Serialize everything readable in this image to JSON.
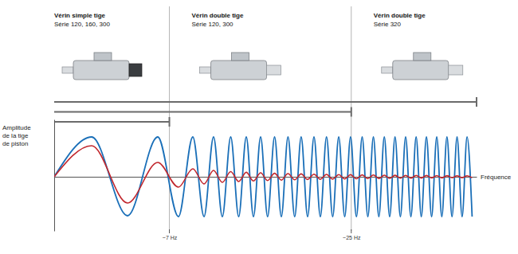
{
  "chart_data": {
    "type": "line",
    "xlabel": "Fréquence",
    "ylabel": [
      "Amplitude",
      "de la tige",
      "de piston"
    ],
    "xlim": [
      -4.4,
      37.4
    ],
    "ylim": [
      -68,
      72
    ],
    "xticks": [
      {
        "value": 7,
        "label": "~7 Hz"
      },
      {
        "value": 25,
        "label": "~25 Hz"
      }
    ],
    "yticks": [],
    "tick_labels": "x",
    "grid": true,
    "products": [
      {
        "name": "Vérin simple tige",
        "series": "Série 120, 160, 300",
        "range": [
          -4.4,
          7
        ]
      },
      {
        "name": "Vérin double tige",
        "series": "Série 120, 300",
        "range": [
          -4.4,
          25
        ]
      },
      {
        "name": "Vérin double tige",
        "series": "Série 320",
        "range": [
          -4.4,
          37.4
        ]
      }
    ],
    "x": [
      -4.4,
      -0.69,
      2.86,
      5.85,
      7.9,
      9.32,
      10.43,
      11.37,
      12.24,
      13.07,
      13.86,
      14.61,
      15.32,
      16.03,
      16.72,
      17.41,
      18.08,
      18.74,
      19.4,
      20.04,
      20.68,
      21.31,
      21.94,
      22.55,
      23.16,
      23.76,
      24.35,
      24.93,
      25.51,
      26.08,
      26.64,
      27.19,
      27.73,
      28.27,
      28.8,
      29.33,
      29.86,
      30.38,
      30.9,
      31.42,
      31.93,
      32.44,
      32.95,
      33.46,
      33.96,
      34.47,
      34.97,
      35.47,
      35.97,
      36.46,
      36.96
    ],
    "series": [
      {
        "color": "#1a6fb8",
        "values": [
          0,
          50,
          -49,
          50,
          -50,
          50,
          -50,
          50,
          -50,
          50,
          -50,
          50,
          -50,
          50,
          -50,
          50,
          -50,
          50,
          -50,
          50,
          -50,
          50,
          -50,
          50,
          -50,
          50,
          -50,
          50,
          -50,
          50,
          -50,
          50,
          -50,
          50,
          -50,
          50,
          -50,
          50,
          -50,
          50,
          -50,
          50,
          -50,
          50,
          -50,
          50,
          -50,
          50,
          -50,
          50,
          -50
        ]
      },
      {
        "color": "#c1272d",
        "values": [
          0,
          39,
          -33,
          18,
          -13,
          10,
          -9,
          8,
          -7,
          6.5,
          -6,
          5.6,
          -5.3,
          5,
          -4.7,
          4.4,
          -4.2,
          4,
          -3.8,
          3.6,
          -3.4,
          3.2,
          -3.1,
          3,
          -2.9,
          2.8,
          -2.7,
          2.6,
          -2.5,
          2.4,
          -2.3,
          2.2,
          -2.1,
          2,
          -2,
          1.9,
          -1.8,
          1.8,
          -1.7,
          1.7,
          -1.6,
          1.6,
          -1.5,
          1.5,
          -1.4,
          1.4,
          -1.3,
          1.3,
          -1.3,
          1.2,
          -1.2
        ]
      }
    ]
  }
}
